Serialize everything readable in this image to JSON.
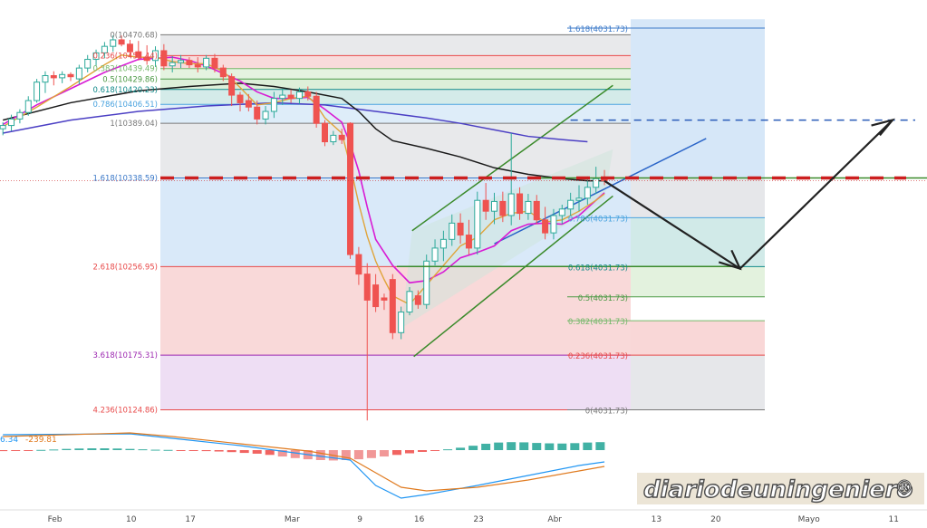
{
  "chart_data": {
    "type": "candlestick",
    "x_ticks": [
      {
        "label": "Feb",
        "day": 1
      },
      {
        "label": "10",
        "day": 10
      },
      {
        "label": "17",
        "day": 17
      },
      {
        "label": "Mar",
        "day": 29
      },
      {
        "label": "9",
        "day": 37
      },
      {
        "label": "16",
        "day": 44
      },
      {
        "label": "23",
        "day": 51
      },
      {
        "label": "Abr",
        "day": 60
      },
      {
        "label": "13",
        "day": 72
      },
      {
        "label": "20",
        "day": 79
      },
      {
        "label": "Mayo",
        "day": 90
      },
      {
        "label": "11",
        "day": 100
      }
    ],
    "y_domain": [
      10115,
      10485
    ],
    "fib_left": [
      {
        "label": "0(10470.68)",
        "value": 10470.68,
        "color": "#787878",
        "fill": "#e2e3e6"
      },
      {
        "label": "0.236(10451.44)",
        "value": 10451.44,
        "color": "#e84a4a",
        "fill": "#f6d2d2"
      },
      {
        "label": "0.382(10439.49)",
        "value": 10439.49,
        "color": "#74b86a",
        "fill": "#def0d8"
      },
      {
        "label": "0.5(10429.86)",
        "value": 10429.86,
        "color": "#4d9a46",
        "fill": "#d5ebd0"
      },
      {
        "label": "0.618(10420.23)",
        "value": 10420.23,
        "color": "#128a8a",
        "fill": "#c9e6e4"
      },
      {
        "label": "0.786(10406.51)",
        "value": 10406.51,
        "color": "#4aa3df",
        "fill": "#d6e9f7"
      },
      {
        "label": "1(10389.04)",
        "value": 10389.04,
        "color": "#787878",
        "fill": "#e2e3e6"
      },
      {
        "label": "1.618(10338.59)",
        "value": 10338.59,
        "color": "#3a78c8",
        "fill": "#cfe3f7"
      },
      {
        "label": "2.618(10256.95)",
        "value": 10256.95,
        "color": "#e84a4a",
        "fill": "#f8d0d0"
      },
      {
        "label": "3.618(10175.31)",
        "value": 10175.31,
        "color": "#9c27b0",
        "fill": "#ead6f1"
      },
      {
        "label": "4.236(10124.86)",
        "value": 10124.86,
        "color": "#e84a4a",
        "fill": ""
      }
    ],
    "fib_right": [
      {
        "label": "1.618(4031.73)",
        "color": "#3a78c8"
      },
      {
        "label": "0.786(4031.73)",
        "color": "#4aa3df"
      },
      {
        "label": "0.618(4031.73)",
        "color": "#128a8a"
      },
      {
        "label": "0.5(4031.73)",
        "color": "#4d9a46"
      },
      {
        "label": "0.382(4031.73)",
        "color": "#74b86a"
      },
      {
        "label": "0.236(4031.73)",
        "color": "#e84a4a"
      },
      {
        "label": "0(4031.73)",
        "color": "#787878"
      }
    ],
    "fib_right_values": [
      10485,
      10338.59,
      10302,
      10256.95,
      10229,
      10207,
      10175.31,
      10124.86
    ],
    "candles": [
      {
        "d": 0,
        "o": 10384,
        "h": 10390,
        "l": 10378,
        "c": 10387
      },
      {
        "d": 1,
        "o": 10387,
        "h": 10397,
        "l": 10382,
        "c": 10393
      },
      {
        "d": 2,
        "o": 10393,
        "h": 10402,
        "l": 10389,
        "c": 10399
      },
      {
        "d": 3,
        "o": 10399,
        "h": 10414,
        "l": 10396,
        "c": 10410
      },
      {
        "d": 4,
        "o": 10410,
        "h": 10430,
        "l": 10408,
        "c": 10427
      },
      {
        "d": 5,
        "o": 10427,
        "h": 10437,
        "l": 10417,
        "c": 10433
      },
      {
        "d": 6,
        "o": 10433,
        "h": 10437,
        "l": 10424,
        "c": 10431
      },
      {
        "d": 7,
        "o": 10431,
        "h": 10437,
        "l": 10426,
        "c": 10434
      },
      {
        "d": 8,
        "o": 10434,
        "h": 10436,
        "l": 10428,
        "c": 10432
      },
      {
        "d": 9,
        "o": 10430,
        "h": 10443,
        "l": 10425,
        "c": 10440
      },
      {
        "d": 10,
        "o": 10440,
        "h": 10452,
        "l": 10436,
        "c": 10448
      },
      {
        "d": 11,
        "o": 10448,
        "h": 10457,
        "l": 10442,
        "c": 10454
      },
      {
        "d": 12,
        "o": 10454,
        "h": 10464,
        "l": 10449,
        "c": 10460
      },
      {
        "d": 13,
        "o": 10460,
        "h": 10470,
        "l": 10455,
        "c": 10466
      },
      {
        "d": 14,
        "o": 10466,
        "h": 10470,
        "l": 10460,
        "c": 10462
      },
      {
        "d": 15,
        "o": 10462,
        "h": 10466,
        "l": 10450,
        "c": 10455
      },
      {
        "d": 16,
        "o": 10455,
        "h": 10465,
        "l": 10447,
        "c": 10450
      },
      {
        "d": 17,
        "o": 10450,
        "h": 10461,
        "l": 10443,
        "c": 10447
      },
      {
        "d": 18,
        "o": 10447,
        "h": 10460,
        "l": 10441,
        "c": 10456
      },
      {
        "d": 19,
        "o": 10456,
        "h": 10462,
        "l": 10438,
        "c": 10442
      },
      {
        "d": 20,
        "o": 10442,
        "h": 10451,
        "l": 10436,
        "c": 10445
      },
      {
        "d": 21,
        "o": 10445,
        "h": 10452,
        "l": 10440,
        "c": 10447
      },
      {
        "d": 22,
        "o": 10447,
        "h": 10450,
        "l": 10440,
        "c": 10443
      },
      {
        "d": 23,
        "o": 10443,
        "h": 10450,
        "l": 10436,
        "c": 10441
      },
      {
        "d": 24,
        "o": 10441,
        "h": 10452,
        "l": 10438,
        "c": 10449
      },
      {
        "d": 25,
        "o": 10449,
        "h": 10453,
        "l": 10436,
        "c": 10440
      },
      {
        "d": 26,
        "o": 10440,
        "h": 10443,
        "l": 10428,
        "c": 10432
      },
      {
        "d": 27,
        "o": 10432,
        "h": 10435,
        "l": 10405,
        "c": 10415
      },
      {
        "d": 28,
        "o": 10415,
        "h": 10418,
        "l": 10400,
        "c": 10408
      },
      {
        "d": 29,
        "o": 10410,
        "h": 10416,
        "l": 10400,
        "c": 10404
      },
      {
        "d": 30,
        "o": 10404,
        "h": 10410,
        "l": 10388,
        "c": 10393
      },
      {
        "d": 31,
        "o": 10393,
        "h": 10405,
        "l": 10388,
        "c": 10400
      },
      {
        "d": 32,
        "o": 10400,
        "h": 10418,
        "l": 10394,
        "c": 10412
      },
      {
        "d": 33,
        "o": 10412,
        "h": 10421,
        "l": 10406,
        "c": 10415
      },
      {
        "d": 34,
        "o": 10415,
        "h": 10420,
        "l": 10408,
        "c": 10412
      },
      {
        "d": 35,
        "o": 10412,
        "h": 10422,
        "l": 10407,
        "c": 10418
      },
      {
        "d": 36,
        "o": 10418,
        "h": 10423,
        "l": 10410,
        "c": 10414
      },
      {
        "d": 37,
        "o": 10414,
        "h": 10418,
        "l": 10385,
        "c": 10389
      },
      {
        "d": 38,
        "o": 10389,
        "h": 10392,
        "l": 10368,
        "c": 10372
      },
      {
        "d": 39,
        "o": 10372,
        "h": 10382,
        "l": 10369,
        "c": 10378
      },
      {
        "d": 40,
        "o": 10378,
        "h": 10384,
        "l": 10370,
        "c": 10374
      },
      {
        "d": 41,
        "o": 10389,
        "h": 10390,
        "l": 10264,
        "c": 10268
      },
      {
        "d": 42,
        "o": 10268,
        "h": 10275,
        "l": 10240,
        "c": 10250
      },
      {
        "d": 43,
        "o": 10250,
        "h": 10260,
        "l": 10115,
        "c": 10226
      },
      {
        "d": 44,
        "o": 10240,
        "h": 10250,
        "l": 10215,
        "c": 10220
      },
      {
        "d": 45,
        "o": 10228,
        "h": 10232,
        "l": 10217,
        "c": 10226
      },
      {
        "d": 46,
        "o": 10245,
        "h": 10250,
        "l": 10190,
        "c": 10196
      },
      {
        "d": 47,
        "o": 10196,
        "h": 10220,
        "l": 10190,
        "c": 10215
      },
      {
        "d": 48,
        "o": 10215,
        "h": 10238,
        "l": 10212,
        "c": 10234
      },
      {
        "d": 49,
        "o": 10230,
        "h": 10235,
        "l": 10218,
        "c": 10222
      },
      {
        "d": 50,
        "o": 10222,
        "h": 10268,
        "l": 10218,
        "c": 10262
      },
      {
        "d": 51,
        "o": 10262,
        "h": 10282,
        "l": 10258,
        "c": 10274
      },
      {
        "d": 52,
        "o": 10274,
        "h": 10290,
        "l": 10262,
        "c": 10282
      },
      {
        "d": 53,
        "o": 10282,
        "h": 10305,
        "l": 10276,
        "c": 10297
      },
      {
        "d": 54,
        "o": 10297,
        "h": 10306,
        "l": 10278,
        "c": 10286
      },
      {
        "d": 55,
        "o": 10286,
        "h": 10300,
        "l": 10268,
        "c": 10274
      },
      {
        "d": 56,
        "o": 10274,
        "h": 10326,
        "l": 10268,
        "c": 10318
      },
      {
        "d": 57,
        "o": 10318,
        "h": 10334,
        "l": 10300,
        "c": 10308
      },
      {
        "d": 58,
        "o": 10308,
        "h": 10325,
        "l": 10296,
        "c": 10317
      },
      {
        "d": 59,
        "o": 10317,
        "h": 10326,
        "l": 10298,
        "c": 10304
      },
      {
        "d": 60,
        "o": 10304,
        "h": 10380,
        "l": 10295,
        "c": 10324
      },
      {
        "d": 61,
        "o": 10324,
        "h": 10330,
        "l": 10300,
        "c": 10306
      },
      {
        "d": 62,
        "o": 10306,
        "h": 10324,
        "l": 10300,
        "c": 10317
      },
      {
        "d": 63,
        "o": 10317,
        "h": 10323,
        "l": 10296,
        "c": 10300
      },
      {
        "d": 64,
        "o": 10300,
        "h": 10312,
        "l": 10282,
        "c": 10288
      },
      {
        "d": 65,
        "o": 10288,
        "h": 10310,
        "l": 10282,
        "c": 10304
      },
      {
        "d": 66,
        "o": 10304,
        "h": 10314,
        "l": 10296,
        "c": 10310
      },
      {
        "d": 67,
        "o": 10310,
        "h": 10325,
        "l": 10304,
        "c": 10318
      },
      {
        "d": 68,
        "o": 10318,
        "h": 10332,
        "l": 10308,
        "c": 10320
      },
      {
        "d": 69,
        "o": 10320,
        "h": 10340,
        "l": 10314,
        "c": 10330
      },
      {
        "d": 70,
        "o": 10330,
        "h": 10349,
        "l": 10324,
        "c": 10338
      },
      {
        "d": 71,
        "o": 10338,
        "h": 10346,
        "l": 10332,
        "c": 10336
      }
    ],
    "ma_magenta": [
      [
        0,
        10388
      ],
      [
        4,
        10406
      ],
      [
        8,
        10421
      ],
      [
        12,
        10436
      ],
      [
        16,
        10448
      ],
      [
        20,
        10450
      ],
      [
        22,
        10447
      ],
      [
        24,
        10442
      ],
      [
        26,
        10435
      ],
      [
        28,
        10428
      ],
      [
        30,
        10418
      ],
      [
        32,
        10412
      ],
      [
        34,
        10412
      ],
      [
        36,
        10413
      ],
      [
        38,
        10402
      ],
      [
        40,
        10390
      ],
      [
        41,
        10370
      ],
      [
        42,
        10345
      ],
      [
        43,
        10312
      ],
      [
        44,
        10282
      ],
      [
        46,
        10258
      ],
      [
        48,
        10242
      ],
      [
        50,
        10244
      ],
      [
        52,
        10252
      ],
      [
        54,
        10265
      ],
      [
        56,
        10270
      ],
      [
        58,
        10276
      ],
      [
        60,
        10290
      ],
      [
        62,
        10296
      ],
      [
        64,
        10297
      ],
      [
        66,
        10296
      ],
      [
        68,
        10304
      ],
      [
        70,
        10318
      ],
      [
        71,
        10325
      ]
    ],
    "ma_orange": [
      [
        0,
        10386
      ],
      [
        4,
        10404
      ],
      [
        8,
        10423
      ],
      [
        12,
        10443
      ],
      [
        14,
        10452
      ],
      [
        16,
        10450
      ],
      [
        18,
        10450
      ],
      [
        20,
        10446
      ],
      [
        22,
        10444
      ],
      [
        24,
        10444
      ],
      [
        26,
        10437
      ],
      [
        28,
        10422
      ],
      [
        30,
        10406
      ],
      [
        32,
        10408
      ],
      [
        34,
        10412
      ],
      [
        36,
        10414
      ],
      [
        37,
        10406
      ],
      [
        38,
        10394
      ],
      [
        40,
        10380
      ],
      [
        41,
        10350
      ],
      [
        42,
        10315
      ],
      [
        43,
        10285
      ],
      [
        44,
        10262
      ],
      [
        45,
        10245
      ],
      [
        46,
        10230
      ],
      [
        48,
        10222
      ],
      [
        50,
        10240
      ],
      [
        52,
        10258
      ],
      [
        54,
        10276
      ],
      [
        56,
        10284
      ],
      [
        58,
        10300
      ],
      [
        60,
        10306
      ],
      [
        62,
        10308
      ],
      [
        64,
        10298
      ],
      [
        66,
        10300
      ],
      [
        68,
        10308
      ],
      [
        70,
        10318
      ],
      [
        71,
        10324
      ]
    ],
    "ma_black": [
      [
        0,
        10392
      ],
      [
        8,
        10408
      ],
      [
        16,
        10419
      ],
      [
        22,
        10423
      ],
      [
        28,
        10426
      ],
      [
        32,
        10423
      ],
      [
        36,
        10418
      ],
      [
        40,
        10412
      ],
      [
        42,
        10400
      ],
      [
        44,
        10384
      ],
      [
        46,
        10373
      ],
      [
        50,
        10366
      ],
      [
        54,
        10358
      ],
      [
        58,
        10348
      ],
      [
        62,
        10342
      ],
      [
        66,
        10338
      ],
      [
        69,
        10336
      ],
      [
        71,
        10336
      ]
    ],
    "ma_blue": [
      [
        0,
        10380
      ],
      [
        8,
        10392
      ],
      [
        16,
        10400
      ],
      [
        24,
        10405
      ],
      [
        32,
        10408
      ],
      [
        38,
        10406
      ],
      [
        42,
        10402
      ],
      [
        46,
        10398
      ],
      [
        50,
        10394
      ],
      [
        54,
        10389
      ],
      [
        58,
        10383
      ],
      [
        62,
        10377
      ],
      [
        66,
        10374
      ],
      [
        69,
        10372
      ]
    ],
    "projection_arrow": [
      [
        71,
        10336
      ],
      [
        87,
        10255
      ],
      [
        105,
        10392
      ]
    ],
    "macd_values": [
      -0.5,
      -0.3,
      -0.1,
      0.1,
      0.3,
      0.6,
      0.8,
      0.9,
      0.9,
      0.8,
      0.6,
      0.4,
      0.2,
      0.1,
      -0.1,
      -0.3,
      -0.5,
      -0.7,
      -1.0,
      -1.4,
      -1.8,
      -2.4,
      -3.2,
      -4.0,
      -4.6,
      -5.0,
      -5.2,
      -5.0,
      -4.6,
      -4.0,
      -3.2,
      -2.4,
      -1.6,
      -0.9,
      -0.3,
      0.4,
      1.2,
      2.2,
      3.2,
      3.8,
      4.0,
      3.9,
      3.6,
      3.4,
      3.3,
      3.5,
      3.8,
      4.0
    ],
    "macd_label_a": "6.34",
    "macd_label_b": "-239.81",
    "watermark": "diariodeuningeniero",
    "watermark_mark": "®"
  }
}
